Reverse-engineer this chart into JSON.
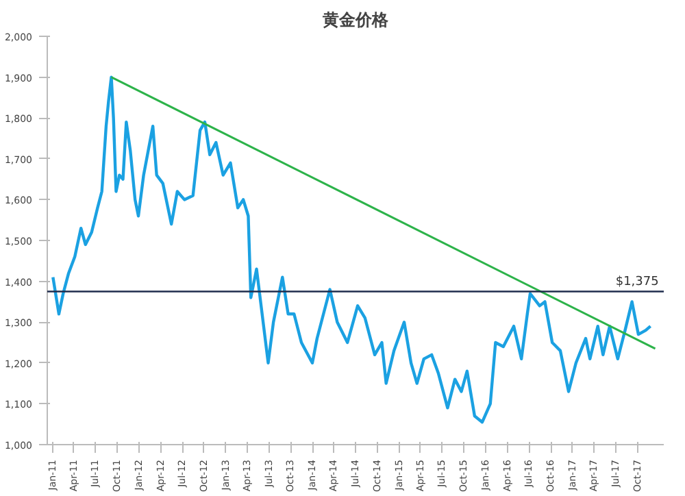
{
  "chart_data": {
    "type": "line",
    "title": "黄金价格",
    "x": [
      "2011-01-03",
      "2011-01-28",
      "2011-02-15",
      "2011-03-10",
      "2011-04-05",
      "2011-05-01",
      "2011-05-20",
      "2011-06-15",
      "2011-07-10",
      "2011-07-28",
      "2011-08-15",
      "2011-08-25",
      "2011-09-06",
      "2011-09-15",
      "2011-09-26",
      "2011-10-10",
      "2011-10-25",
      "2011-11-08",
      "2011-11-25",
      "2011-12-15",
      "2011-12-29",
      "2012-01-20",
      "2012-02-28",
      "2012-03-15",
      "2012-04-10",
      "2012-05-16",
      "2012-06-10",
      "2012-07-10",
      "2012-08-15",
      "2012-09-14",
      "2012-10-04",
      "2012-10-25",
      "2012-11-20",
      "2012-12-20",
      "2013-01-20",
      "2013-02-20",
      "2013-03-15",
      "2013-04-05",
      "2013-04-16",
      "2013-05-10",
      "2013-06-28",
      "2013-07-20",
      "2013-08-27",
      "2013-09-20",
      "2013-10-15",
      "2013-11-15",
      "2013-12-31",
      "2014-01-20",
      "2014-03-15",
      "2014-04-15",
      "2014-05-28",
      "2014-07-10",
      "2014-08-10",
      "2014-09-20",
      "2014-10-20",
      "2014-11-07",
      "2014-12-10",
      "2015-01-22",
      "2015-02-20",
      "2015-03-17",
      "2015-04-15",
      "2015-05-18",
      "2015-06-15",
      "2015-07-24",
      "2015-08-24",
      "2015-09-20",
      "2015-10-14",
      "2015-11-15",
      "2015-12-17",
      "2016-01-20",
      "2016-02-11",
      "2016-03-15",
      "2016-04-28",
      "2016-05-30",
      "2016-06-24",
      "2016-07-06",
      "2016-08-15",
      "2016-09-06",
      "2016-10-07",
      "2016-11-10",
      "2016-12-15",
      "2017-01-15",
      "2017-02-25",
      "2017-03-15",
      "2017-04-17",
      "2017-05-09",
      "2017-06-06",
      "2017-07-10",
      "2017-08-10",
      "2017-09-08",
      "2017-10-05",
      "2017-11-05",
      "2017-11-25"
    ],
    "series": [
      {
        "color": "#1ba1e2",
        "values": [
          1410,
          1320,
          1370,
          1420,
          1460,
          1530,
          1490,
          1520,
          1580,
          1620,
          1780,
          1840,
          1900,
          1800,
          1620,
          1660,
          1650,
          1790,
          1720,
          1600,
          1560,
          1660,
          1780,
          1660,
          1640,
          1540,
          1620,
          1600,
          1610,
          1770,
          1790,
          1710,
          1740,
          1660,
          1690,
          1580,
          1600,
          1560,
          1360,
          1430,
          1200,
          1300,
          1410,
          1320,
          1320,
          1250,
          1200,
          1260,
          1380,
          1300,
          1250,
          1340,
          1310,
          1220,
          1250,
          1150,
          1230,
          1300,
          1200,
          1150,
          1210,
          1220,
          1175,
          1090,
          1160,
          1130,
          1180,
          1070,
          1055,
          1100,
          1250,
          1240,
          1290,
          1210,
          1320,
          1370,
          1340,
          1350,
          1250,
          1230,
          1130,
          1200,
          1260,
          1210,
          1290,
          1220,
          1290,
          1210,
          1280,
          1350,
          1270,
          1280,
          1290
        ]
      },
      {
        "type": "line",
        "color": "#2db34a",
        "x": [
          "2011-09-06",
          "2017-12-15"
        ],
        "values": [
          1900,
          1235
        ]
      }
    ],
    "xlim": [
      "2010-12-10",
      "2018-01-20"
    ],
    "xticks": [
      {
        "value": "2011-01-01",
        "label": "Jan-11"
      },
      {
        "value": "2011-04-01",
        "label": "Apr-11"
      },
      {
        "value": "2011-07-01",
        "label": "Jul-11"
      },
      {
        "value": "2011-10-01",
        "label": "Oct-11"
      },
      {
        "value": "2012-01-01",
        "label": "Jan-12"
      },
      {
        "value": "2012-04-01",
        "label": "Apr-12"
      },
      {
        "value": "2012-07-01",
        "label": "Jul-12"
      },
      {
        "value": "2012-10-01",
        "label": "Oct-12"
      },
      {
        "value": "2013-01-01",
        "label": "Jan-13"
      },
      {
        "value": "2013-04-01",
        "label": "Apr-13"
      },
      {
        "value": "2013-07-01",
        "label": "Jul-13"
      },
      {
        "value": "2013-10-01",
        "label": "Oct-13"
      },
      {
        "value": "2014-01-01",
        "label": "Jan-14"
      },
      {
        "value": "2014-04-01",
        "label": "Apr-14"
      },
      {
        "value": "2014-07-01",
        "label": "Jul-14"
      },
      {
        "value": "2014-10-01",
        "label": "Oct-14"
      },
      {
        "value": "2015-01-01",
        "label": "Jan-15"
      },
      {
        "value": "2015-04-01",
        "label": "Apr-15"
      },
      {
        "value": "2015-07-01",
        "label": "Jul-15"
      },
      {
        "value": "2015-10-01",
        "label": "Oct-15"
      },
      {
        "value": "2016-01-01",
        "label": "Jan-16"
      },
      {
        "value": "2016-04-01",
        "label": "Apr-16"
      },
      {
        "value": "2016-07-01",
        "label": "Jul-16"
      },
      {
        "value": "2016-10-01",
        "label": "Oct-16"
      },
      {
        "value": "2017-01-01",
        "label": "Jan-17"
      },
      {
        "value": "2017-04-01",
        "label": "Apr-17"
      },
      {
        "value": "2017-07-01",
        "label": "Jul-17"
      },
      {
        "value": "2017-10-01",
        "label": "Oct-17"
      }
    ],
    "ylim": [
      1000,
      2000
    ],
    "yticks": [
      {
        "value": 1000,
        "label": "1,000"
      },
      {
        "value": 1100,
        "label": "1,100"
      },
      {
        "value": 1200,
        "label": "1,200"
      },
      {
        "value": 1300,
        "label": "1,300"
      },
      {
        "value": 1400,
        "label": "1,400"
      },
      {
        "value": 1500,
        "label": "1,500"
      },
      {
        "value": 1600,
        "label": "1,600"
      },
      {
        "value": 1700,
        "label": "1,700"
      },
      {
        "value": 1800,
        "label": "1,800"
      },
      {
        "value": 1900,
        "label": "1,900"
      },
      {
        "value": 2000,
        "label": "2,000"
      }
    ],
    "ref_lines": [
      {
        "axis": "y",
        "value": 1375,
        "label": "$1,375",
        "color": "#1f2d4d"
      }
    ],
    "grid": false,
    "line_style": "solid"
  }
}
